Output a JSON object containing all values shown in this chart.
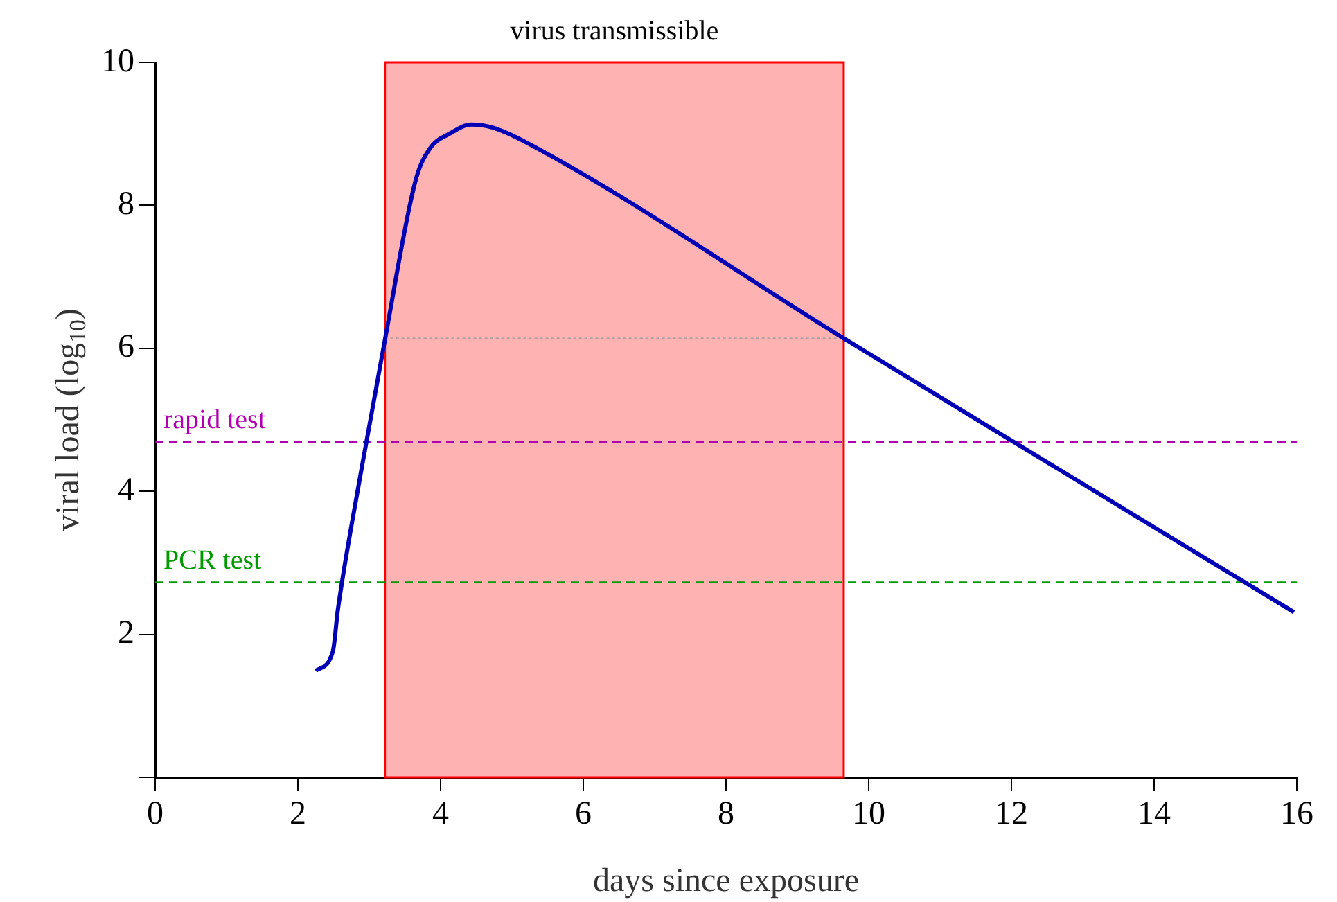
{
  "chart_data": {
    "type": "line",
    "xlabel": "days since exposure",
    "ylabel": "viral load (log$_{10}$)",
    "xlim": [
      0,
      16
    ],
    "xticks": [
      0,
      2,
      4,
      6,
      8,
      10,
      12,
      14,
      16
    ],
    "ylim": [
      0,
      10
    ],
    "yticks": [
      {
        "value": 0,
        "label": null
      },
      2,
      4,
      6,
      8,
      10
    ],
    "grid": false,
    "legend": false,
    "marker": "none",
    "series": [
      {
        "color": "#0000b4",
        "line_style": "solid",
        "x": [
          2.25,
          2.49,
          2.56,
          2.87,
          3.22,
          3.65,
          3.84,
          4.14,
          4.43,
          4.72,
          5.2,
          9.65,
          12.0,
          15.96
        ],
        "values": [
          1.49,
          1.76,
          2.34,
          4.19,
          6.12,
          8.35,
          8.78,
          9.01,
          9.13,
          9.09,
          8.88,
          6.14,
          4.71,
          2.31
        ]
      },
      {
        "color": "#b0a0a0",
        "line_style": "dotted",
        "x": [
          3.22,
          9.65
        ],
        "values": [
          6.14,
          6.14
        ]
      }
    ],
    "bands": [
      {
        "axis": "x",
        "from": 3.22,
        "to": 9.65,
        "label": "virus transmissible",
        "color": "#ff0000"
      }
    ],
    "ref_lines": [
      {
        "axis": "y",
        "value": 4.69,
        "label": "rapid test",
        "color": "#b000b0",
        "line_style": "dashed"
      },
      {
        "axis": "y",
        "value": 2.73,
        "label": "PCR test",
        "color": "#009900",
        "line_style": "dashed"
      }
    ]
  }
}
